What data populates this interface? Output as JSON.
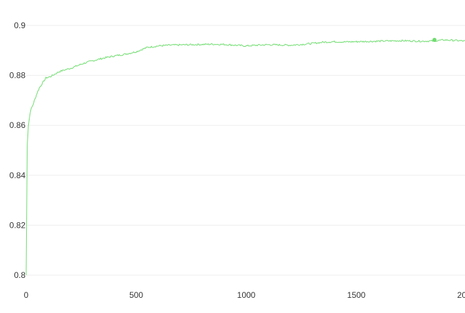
{
  "chart_data": {
    "type": "line",
    "title": "",
    "xlabel": "",
    "ylabel": "",
    "xlim": [
      0,
      2000
    ],
    "ylim": [
      0.8,
      0.9
    ],
    "x_ticks": [
      0,
      500,
      1000,
      1500,
      2000
    ],
    "x_tick_labels": [
      "0",
      "500",
      "1000",
      "1500",
      "2000"
    ],
    "y_ticks": [
      0.8,
      0.82,
      0.84,
      0.86,
      0.88,
      0.9
    ],
    "y_tick_labels": [
      "0.8",
      "0.82",
      "0.84",
      "0.86",
      "0.88",
      "0.9"
    ],
    "grid": true,
    "series": [
      {
        "color": "#6fdc6f",
        "x": [
          0,
          5,
          10,
          20,
          30,
          40,
          50,
          60,
          75,
          90,
          110,
          130,
          150,
          175,
          200,
          230,
          260,
          300,
          350,
          400,
          450,
          500,
          550,
          600,
          650,
          700,
          750,
          800,
          850,
          900,
          950,
          1000,
          1050,
          1100,
          1150,
          1200,
          1250,
          1300,
          1350,
          1400,
          1450,
          1500,
          1550,
          1600,
          1650,
          1700,
          1750,
          1800,
          1850,
          1900,
          1950,
          2000
        ],
        "values": [
          0.8,
          0.852,
          0.86,
          0.866,
          0.868,
          0.8705,
          0.873,
          0.875,
          0.877,
          0.879,
          0.8795,
          0.8805,
          0.8815,
          0.8822,
          0.8828,
          0.8838,
          0.8848,
          0.8858,
          0.8869,
          0.8878,
          0.8885,
          0.8895,
          0.8912,
          0.8918,
          0.8921,
          0.8922,
          0.8923,
          0.8924,
          0.8925,
          0.8924,
          0.8921,
          0.8918,
          0.8921,
          0.8923,
          0.8922,
          0.8921,
          0.8924,
          0.8928,
          0.8933,
          0.8935,
          0.8934,
          0.8935,
          0.8936,
          0.8937,
          0.8938,
          0.8939,
          0.8938,
          0.8937,
          0.8938,
          0.8942,
          0.894,
          0.8937
        ],
        "highlight_point": {
          "x": 1855,
          "y": 0.8942
        }
      }
    ]
  }
}
